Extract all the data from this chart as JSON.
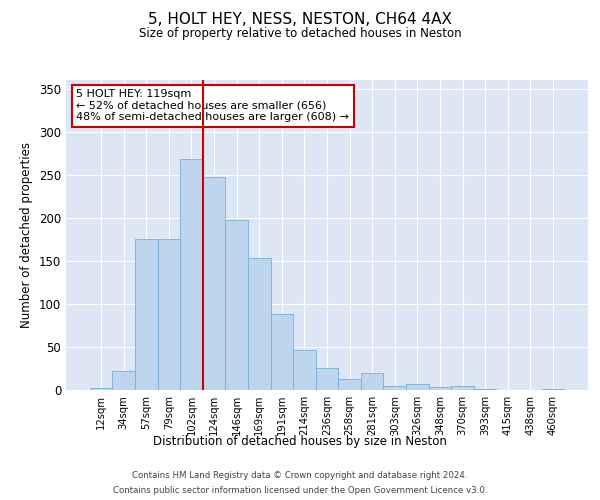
{
  "title": "5, HOLT HEY, NESS, NESTON, CH64 4AX",
  "subtitle": "Size of property relative to detached houses in Neston",
  "xlabel": "Distribution of detached houses by size in Neston",
  "ylabel": "Number of detached properties",
  "categories": [
    "12sqm",
    "34sqm",
    "57sqm",
    "79sqm",
    "102sqm",
    "124sqm",
    "146sqm",
    "169sqm",
    "191sqm",
    "214sqm",
    "236sqm",
    "258sqm",
    "281sqm",
    "303sqm",
    "326sqm",
    "348sqm",
    "370sqm",
    "393sqm",
    "415sqm",
    "438sqm",
    "460sqm"
  ],
  "bar_values": [
    2,
    22,
    175,
    175,
    268,
    247,
    197,
    153,
    88,
    47,
    25,
    13,
    20,
    5,
    7,
    4,
    5,
    1,
    0,
    0,
    1
  ],
  "bar_color": "#bdd5ee",
  "bar_edge_color": "#7aafd4",
  "vline_index": 4.5,
  "vline_color": "#cc0000",
  "annotation_text": "5 HOLT HEY: 119sqm\n← 52% of detached houses are smaller (656)\n48% of semi-detached houses are larger (608) →",
  "ylim": [
    0,
    360
  ],
  "yticks": [
    0,
    50,
    100,
    150,
    200,
    250,
    300,
    350
  ],
  "plot_bg_color": "#dce6f5",
  "grid_color": "#ffffff",
  "footer_line1": "Contains HM Land Registry data © Crown copyright and database right 2024.",
  "footer_line2": "Contains public sector information licensed under the Open Government Licence v3.0."
}
